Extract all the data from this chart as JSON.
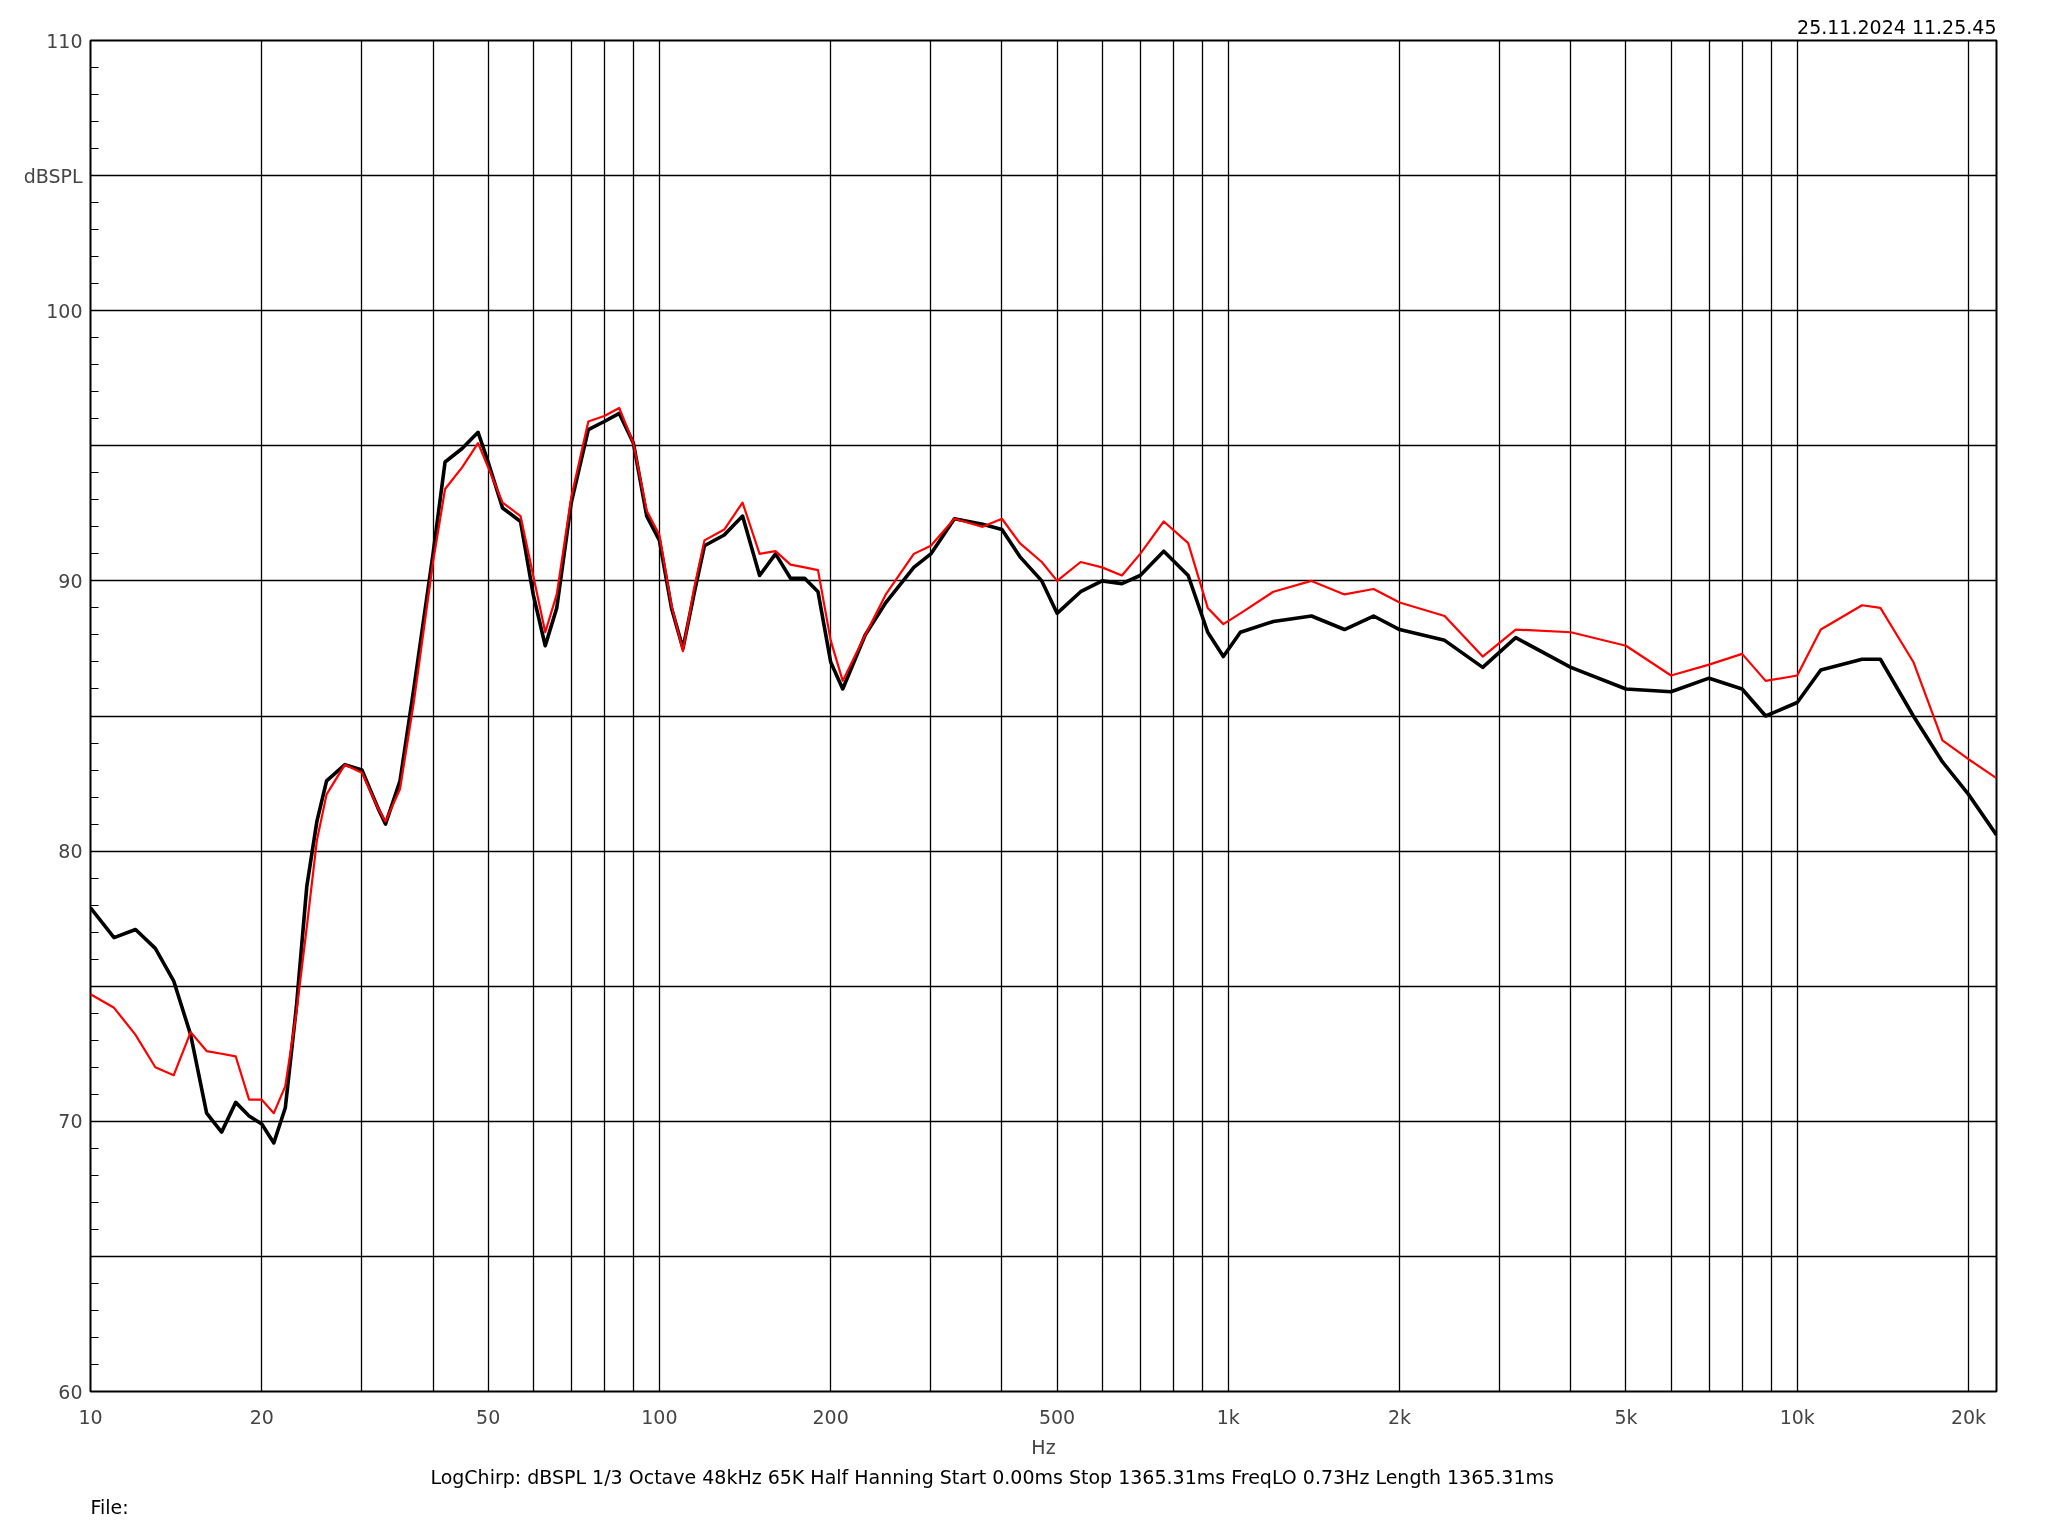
{
  "chart_data": {
    "type": "line",
    "xlabel": "Hz",
    "log": "x",
    "grid": true,
    "line_style": "solid",
    "annotations": [
      "25.11.2024 11.25.45",
      "LogChirp:  dBSPL   1/3 Octave   48kHz   65K   Half Hanning   Start 0.00ms   Stop 1365.31ms   FreqLO 0.73Hz   Length 1365.31ms",
      "File:"
    ],
    "xlim": [
      10,
      22400
    ],
    "ylim": [
      60,
      110
    ],
    "xticks": [
      10,
      20,
      {
        "value": 30,
        "label": null
      },
      {
        "value": 40,
        "label": null
      },
      50,
      {
        "value": 60,
        "label": null
      },
      {
        "value": 70,
        "label": null
      },
      {
        "value": 80,
        "label": null
      },
      {
        "value": 90,
        "label": null
      },
      100,
      200,
      {
        "value": 300,
        "label": null
      },
      {
        "value": 400,
        "label": null
      },
      500,
      {
        "value": 600,
        "label": null
      },
      {
        "value": 700,
        "label": null
      },
      {
        "value": 800,
        "label": null
      },
      {
        "value": 900,
        "label": null
      },
      {
        "value": 1000,
        "label": "1k"
      },
      {
        "value": 2000,
        "label": "2k"
      },
      {
        "value": 3000,
        "label": null
      },
      {
        "value": 4000,
        "label": null
      },
      {
        "value": 5000,
        "label": "5k"
      },
      {
        "value": 6000,
        "label": null
      },
      {
        "value": 7000,
        "label": null
      },
      {
        "value": 8000,
        "label": null
      },
      {
        "value": 9000,
        "label": null
      },
      {
        "value": 10000,
        "label": "10k"
      },
      {
        "value": 20000,
        "label": "20k"
      }
    ],
    "yticks": [
      60,
      {
        "value": 65,
        "label": null
      },
      70,
      {
        "value": 75,
        "label": null
      },
      80,
      {
        "value": 85,
        "label": null
      },
      90,
      {
        "value": 95,
        "label": null
      },
      100,
      {
        "value": 105,
        "label": "dBSPL"
      },
      110
    ],
    "x": [
      10,
      11,
      12,
      13,
      14,
      15,
      16,
      17,
      18,
      19,
      20,
      21,
      22,
      23,
      24,
      25,
      26,
      28,
      30,
      32,
      33,
      35,
      37,
      40,
      42,
      45,
      48,
      50,
      53,
      57,
      60,
      63,
      66,
      70,
      75,
      80,
      85,
      90,
      95,
      100,
      105,
      110,
      115,
      120,
      130,
      140,
      150,
      160,
      170,
      180,
      190,
      200,
      210,
      230,
      250,
      280,
      300,
      330,
      370,
      400,
      430,
      470,
      500,
      550,
      600,
      650,
      700,
      770,
      850,
      920,
      980,
      1050,
      1200,
      1400,
      1600,
      1800,
      2000,
      2400,
      2800,
      3200,
      4000,
      5000,
      6000,
      7000,
      8000,
      8800,
      10000,
      11000,
      13000,
      14000,
      16000,
      18000,
      20000,
      22400
    ],
    "series": [
      {
        "color": "#000000",
        "values": [
          77.9,
          76.8,
          77.1,
          76.4,
          75.2,
          73.2,
          70.3,
          69.6,
          70.7,
          70.2,
          69.9,
          69.2,
          70.5,
          74.2,
          78.7,
          81.1,
          82.6,
          83.2,
          83.0,
          81.6,
          81.0,
          82.6,
          86.0,
          91.0,
          94.4,
          94.9,
          95.5,
          94.4,
          92.7,
          92.2,
          89.5,
          87.6,
          89.0,
          92.9,
          95.6,
          95.9,
          96.2,
          95.1,
          92.4,
          91.5,
          89.0,
          87.5,
          89.5,
          91.3,
          91.7,
          92.4,
          90.2,
          91.0,
          90.1,
          90.1,
          89.6,
          87.0,
          86.0,
          88.0,
          89.2,
          90.5,
          91.0,
          92.3,
          92.1,
          91.9,
          90.9,
          90.0,
          88.8,
          89.6,
          90.0,
          89.9,
          90.2,
          91.1,
          90.2,
          88.1,
          87.2,
          88.1,
          88.5,
          88.7,
          88.2,
          88.7,
          88.2,
          87.8,
          86.8,
          87.9,
          86.8,
          86.0,
          85.9,
          86.4,
          86.0,
          85.0,
          85.5,
          86.7,
          87.1,
          87.1,
          85.0,
          83.3,
          82.1,
          80.6
        ]
      },
      {
        "color": "#ff0000",
        "values": [
          74.7,
          74.2,
          73.2,
          72.0,
          71.7,
          73.3,
          72.6,
          72.5,
          72.4,
          70.8,
          70.8,
          70.3,
          71.3,
          74.0,
          77.2,
          80.4,
          82.1,
          83.2,
          82.9,
          81.6,
          81.1,
          82.3,
          85.5,
          90.7,
          93.4,
          94.2,
          95.1,
          94.2,
          92.9,
          92.4,
          90.2,
          88.1,
          89.5,
          93.1,
          95.9,
          96.1,
          96.4,
          95.1,
          92.6,
          91.7,
          89.1,
          87.4,
          89.7,
          91.5,
          91.9,
          92.9,
          91.0,
          91.1,
          90.6,
          90.5,
          90.4,
          87.8,
          86.3,
          88.0,
          89.5,
          91.0,
          91.3,
          92.3,
          92.0,
          92.3,
          91.4,
          90.7,
          90.0,
          90.7,
          90.5,
          90.2,
          91.0,
          92.2,
          91.4,
          89.0,
          88.4,
          88.8,
          89.6,
          90.0,
          89.5,
          89.7,
          89.2,
          88.7,
          87.2,
          88.2,
          88.1,
          87.6,
          86.5,
          86.9,
          87.3,
          86.3,
          86.5,
          88.2,
          89.1,
          89.0,
          87.0,
          84.1,
          83.4,
          82.7
        ]
      }
    ]
  }
}
